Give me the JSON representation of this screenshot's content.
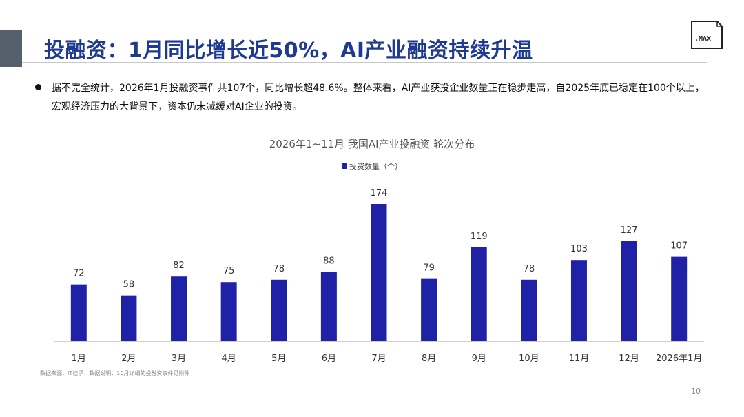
{
  "slide": {
    "title": "投融资：1月同比增长近50%，AI产业融资持续升温",
    "bullet": "据不完全统计，2026年1月投融资事件共107个，同比增长超48.6%。整体来看，AI产业获投企业数量正在稳步走高，自2025年底已稳定在100个以上，宏观经济压力的大背景下，资本仍未减缓对AI企业的投资。",
    "logo_text": ".MAX",
    "source_note": "数据来源：IT桔子；数据说明：10月详细的投融资事件见附件",
    "page_number": "10",
    "colors": {
      "title": "#1f3a93",
      "accent_block": "#56606d",
      "bar": "#1f22a6"
    }
  },
  "chart_data": {
    "type": "bar",
    "title": "2026年1~11月 我国AI产业投融资 轮次分布",
    "categories": [
      "1月",
      "2月",
      "3月",
      "4月",
      "5月",
      "6月",
      "7月",
      "8月",
      "9月",
      "10月",
      "11月",
      "12月",
      "2026年1月"
    ],
    "series": [
      {
        "name": "投资数量（个）",
        "values": [
          72,
          58,
          82,
          75,
          78,
          88,
          174,
          79,
          119,
          78,
          103,
          127,
          107
        ]
      }
    ],
    "legend": "top-center",
    "data_labels": true,
    "grid": false,
    "ylim": [
      0,
      174
    ]
  }
}
